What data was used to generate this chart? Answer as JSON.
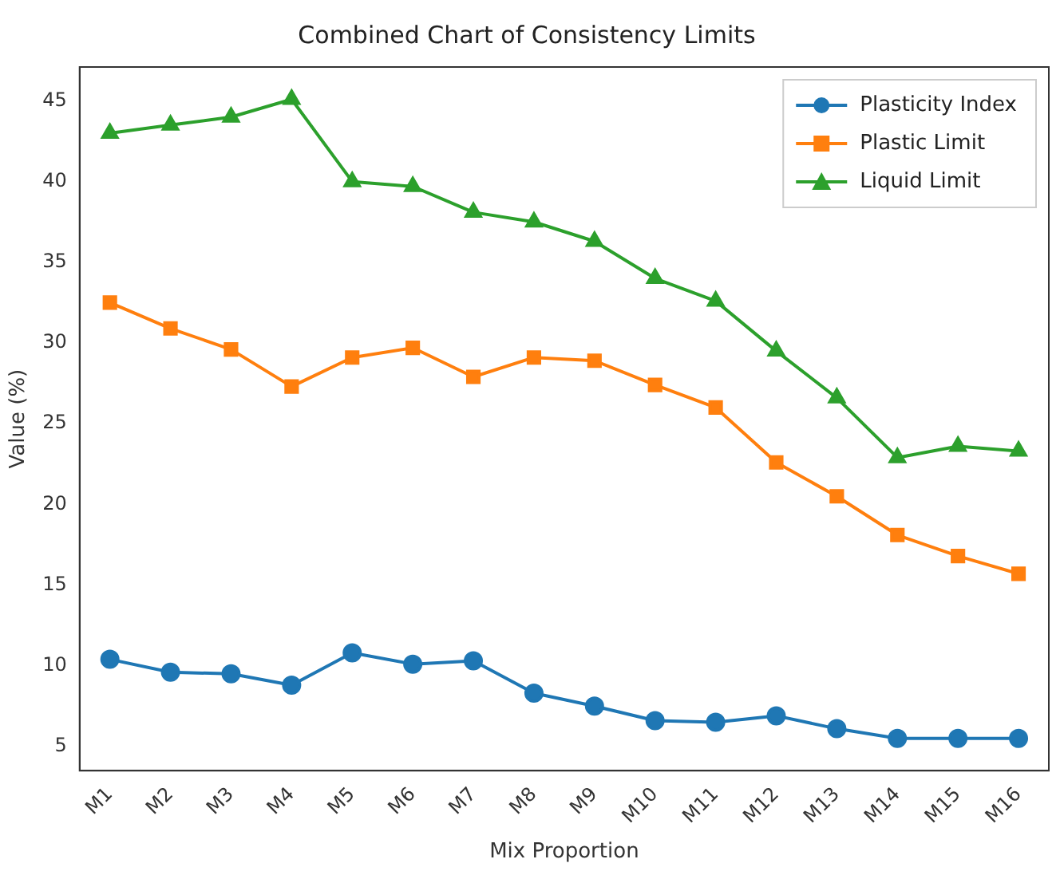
{
  "chart_data": {
    "type": "line",
    "title": "Combined Chart of Consistency Limits",
    "xlabel": "Mix Proportion",
    "ylabel": "Value (%)",
    "categories": [
      "M1",
      "M2",
      "M3",
      "M4",
      "M5",
      "M6",
      "M7",
      "M8",
      "M9",
      "M10",
      "M11",
      "M12",
      "M13",
      "M14",
      "M15",
      "M16"
    ],
    "series": [
      {
        "name": "Plasticity Index",
        "color": "#1f77b4",
        "marker": "circle",
        "values": [
          10.4,
          9.6,
          9.5,
          8.8,
          10.8,
          10.1,
          10.3,
          8.3,
          7.5,
          6.6,
          6.5,
          6.9,
          6.1,
          5.5,
          5.5,
          5.5
        ]
      },
      {
        "name": "Plastic Limit",
        "color": "#ff7f0e",
        "marker": "square",
        "values": [
          32.5,
          30.9,
          29.6,
          27.3,
          29.1,
          29.7,
          27.9,
          29.1,
          28.9,
          27.4,
          26.0,
          22.6,
          20.5,
          18.1,
          16.8,
          15.7
        ]
      },
      {
        "name": "Liquid Limit",
        "color": "#2ca02c",
        "marker": "triangle",
        "values": [
          43.0,
          43.5,
          44.0,
          45.1,
          40.0,
          39.7,
          38.1,
          37.5,
          36.3,
          34.0,
          32.6,
          29.5,
          26.6,
          22.9,
          23.6,
          23.3
        ]
      }
    ],
    "ylim": [
      3.5,
      47.1
    ],
    "yticks": [
      5,
      10,
      15,
      20,
      25,
      30,
      35,
      40,
      45
    ],
    "grid": false,
    "legend": "top right",
    "line_style": "solid"
  }
}
